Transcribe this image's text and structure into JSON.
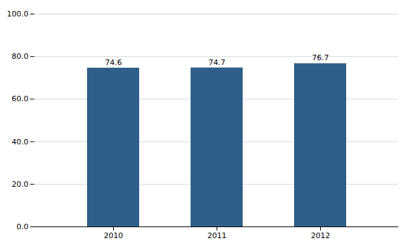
{
  "chart_data": {
    "type": "bar",
    "categories": [
      "2010",
      "2011",
      "2012"
    ],
    "values": [
      74.6,
      74.7,
      76.7
    ],
    "color": "#2E5F8A",
    "ylim": [
      0,
      100
    ],
    "yticks": [
      {
        "value": 0,
        "label": "0.0"
      },
      {
        "value": 20,
        "label": "20.0"
      },
      {
        "value": 40,
        "label": "40.0"
      },
      {
        "value": 60,
        "label": "60.0"
      },
      {
        "value": 80,
        "label": "80.0"
      },
      {
        "value": 100,
        "label": "100.0"
      }
    ],
    "grid": true,
    "data_labels": true
  }
}
